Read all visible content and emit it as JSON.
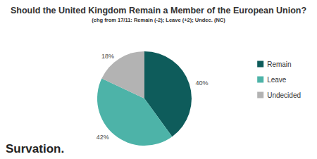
{
  "chart_data": {
    "type": "pie",
    "title": "Should the United Kingdom Remain a Member of the European Union?",
    "subtitle": "(chg from 17/11: Remain (-2); Leave (+2); Undec. (NC)",
    "categories": [
      "Remain",
      "Leave",
      "Undecided"
    ],
    "values": [
      40,
      42,
      18
    ],
    "value_labels": [
      "40%",
      "42%",
      "18%"
    ],
    "colors": [
      "#0e5c5b",
      "#4db3a8",
      "#b3b3b3"
    ],
    "data_labels": true,
    "legend": "right",
    "annotation": "Survation."
  }
}
